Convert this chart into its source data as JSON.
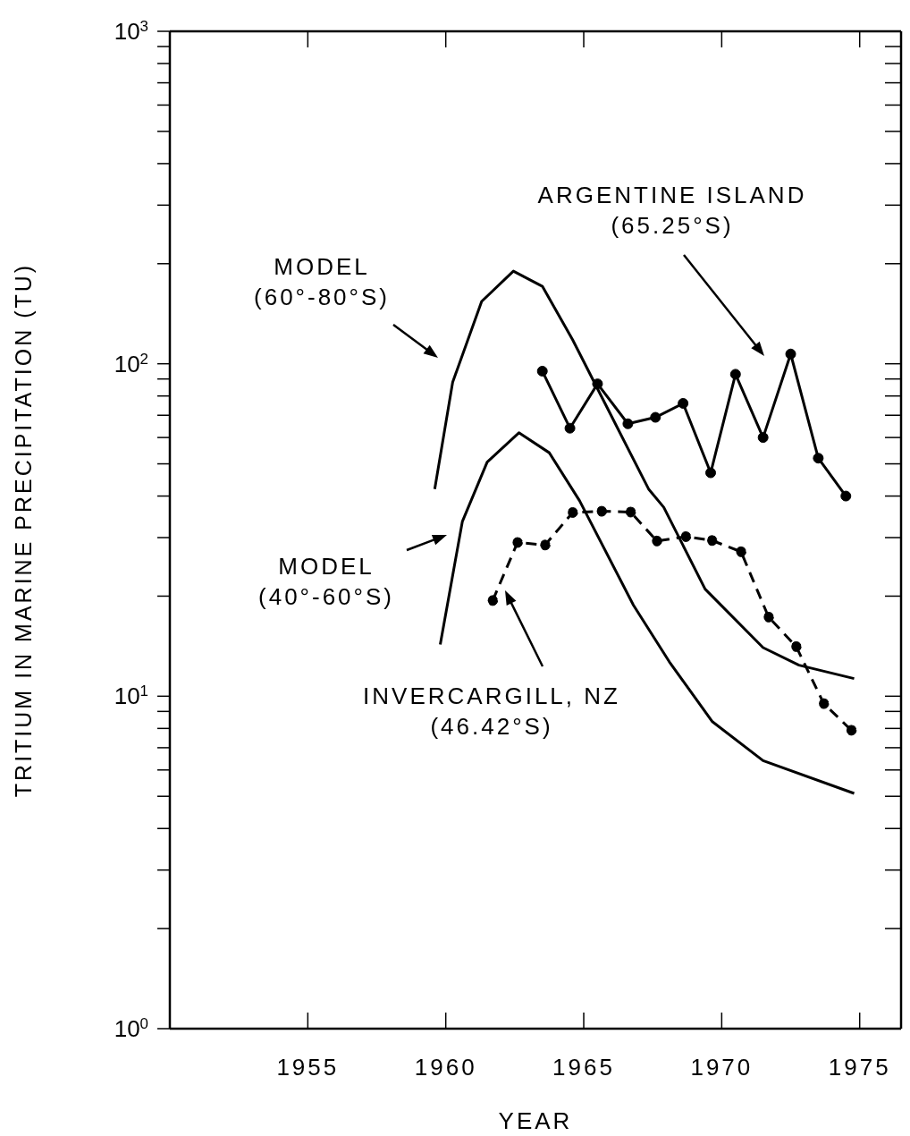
{
  "chart_data": {
    "type": "line",
    "xlabel": "YEAR",
    "ylabel": "TRITIUM IN MARINE PRECIPITATION (TU)",
    "log": "y",
    "grid": false,
    "xlim": [
      1950,
      1976.5
    ],
    "xticks": [
      1955,
      1960,
      1965,
      1970,
      1975
    ],
    "ylim": [
      1,
      1000
    ],
    "yticks": [
      {
        "value": 1,
        "label": "10$^{0}$"
      },
      {
        "value": 2,
        "label": null
      },
      {
        "value": 3,
        "label": null
      },
      {
        "value": 4,
        "label": null
      },
      {
        "value": 5,
        "label": null
      },
      {
        "value": 6,
        "label": null
      },
      {
        "value": 7,
        "label": null
      },
      {
        "value": 8,
        "label": null
      },
      {
        "value": 9,
        "label": null
      },
      {
        "value": 10,
        "label": "10$^{1}$"
      },
      {
        "value": 20,
        "label": null
      },
      {
        "value": 30,
        "label": null
      },
      {
        "value": 40,
        "label": null
      },
      {
        "value": 50,
        "label": null
      },
      {
        "value": 60,
        "label": null
      },
      {
        "value": 70,
        "label": null
      },
      {
        "value": 80,
        "label": null
      },
      {
        "value": 90,
        "label": null
      },
      {
        "value": 100,
        "label": "10$^{2}$"
      },
      {
        "value": 200,
        "label": null
      },
      {
        "value": 300,
        "label": null
      },
      {
        "value": 400,
        "label": null
      },
      {
        "value": 500,
        "label": null
      },
      {
        "value": 600,
        "label": null
      },
      {
        "value": 700,
        "label": null
      },
      {
        "value": 800,
        "label": null
      },
      {
        "value": 900,
        "label": null
      },
      {
        "value": 1000,
        "label": "10$^{3}$"
      }
    ],
    "series": [
      {
        "color": "#000000",
        "marker": "none",
        "line_style": "solid",
        "x": [
          1959.6,
          1960.25,
          1961.3,
          1962.45,
          1963.5,
          1964.6,
          1965.7,
          1967.35,
          1967.9,
          1969.4,
          1971.5,
          1972.8,
          1974.8
        ],
        "values": [
          42,
          88,
          154,
          190,
          171,
          118,
          78,
          42,
          37,
          21,
          14,
          12.4,
          11.3
        ]
      },
      {
        "color": "#000000",
        "marker": "none",
        "line_style": "solid",
        "x": [
          1959.8,
          1960.6,
          1961.5,
          1962.65,
          1963.75,
          1964.85,
          1966.8,
          1968.1,
          1969.65,
          1971.5,
          1974.8
        ],
        "values": [
          14.3,
          33.5,
          50.6,
          62,
          54,
          38.7,
          18.8,
          12.7,
          8.4,
          6.4,
          5.1
        ]
      },
      {
        "color": "#000000",
        "marker": "circle",
        "line_style": "solid",
        "x": [
          1963.5,
          1964.5,
          1965.5,
          1966.6,
          1967.6,
          1968.6,
          1969.6,
          1970.5,
          1971.5,
          1972.5,
          1973.5,
          1974.5
        ],
        "values": [
          95,
          64,
          87,
          66,
          69,
          76,
          47,
          93,
          60,
          107,
          52,
          40
        ]
      },
      {
        "color": "#000000",
        "marker": "circle",
        "line_style": "dashed",
        "x": [
          1961.7,
          1962.6,
          1963.6,
          1964.6,
          1965.65,
          1966.7,
          1967.65,
          1968.7,
          1969.65,
          1970.7,
          1971.7,
          1972.7,
          1973.7,
          1974.7
        ],
        "values": [
          19.4,
          29,
          28.5,
          35.7,
          36,
          35.8,
          29.3,
          30.2,
          29.4,
          27.2,
          17.3,
          14.1,
          9.5,
          7.9
        ]
      }
    ],
    "annotations": [
      "MODEL\n(60°-80°S)",
      "ARGENTINE ISLAND\n(65.25°S)",
      "MODEL\n(40°-60°S)",
      "INVERCARGILL, NZ\n(46.42°S)"
    ]
  }
}
